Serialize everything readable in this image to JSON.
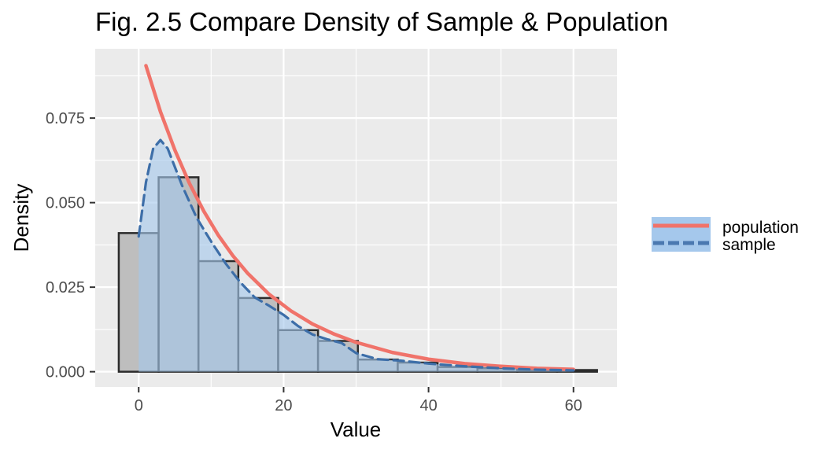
{
  "chart_data": {
    "type": "histogram",
    "title": "Fig. 2.5 Compare Density of Sample & Population",
    "xlabel": "Value",
    "ylabel": "Density",
    "xlim": [
      -6,
      66
    ],
    "ylim": [
      -0.0045,
      0.0955
    ],
    "x_ticks": [
      0,
      20,
      40,
      60
    ],
    "x_tick_labels": [
      "0",
      "20",
      "40",
      "60"
    ],
    "y_ticks": [
      0,
      0.025,
      0.05,
      0.075
    ],
    "y_tick_labels": [
      "0.000",
      "0.025",
      "0.050",
      "0.075"
    ],
    "grid": true,
    "legend_position": "right",
    "histogram": {
      "bin_width": 5.5,
      "bins": [
        {
          "start": -2.75,
          "end": 2.75,
          "density": 0.041
        },
        {
          "start": 2.75,
          "end": 8.25,
          "density": 0.0575
        },
        {
          "start": 8.25,
          "end": 13.75,
          "density": 0.0327
        },
        {
          "start": 13.75,
          "end": 19.25,
          "density": 0.0218
        },
        {
          "start": 19.25,
          "end": 24.75,
          "density": 0.0123
        },
        {
          "start": 24.75,
          "end": 30.25,
          "density": 0.0091
        },
        {
          "start": 30.25,
          "end": 35.75,
          "density": 0.0036
        },
        {
          "start": 35.75,
          "end": 41.25,
          "density": 0.0027
        },
        {
          "start": 41.25,
          "end": 46.75,
          "density": 0.0014
        },
        {
          "start": 46.75,
          "end": 52.25,
          "density": 0.001
        },
        {
          "start": 52.25,
          "end": 57.75,
          "density": 0.0005
        },
        {
          "start": 57.75,
          "end": 63.25,
          "density": 0.0005
        }
      ],
      "fill": "#bebebe",
      "stroke": "#2b2b2b"
    },
    "series": [
      {
        "name": "population",
        "style": "solid",
        "color": "#f0736a",
        "x": [
          1,
          3,
          5,
          7,
          9,
          11,
          13,
          15,
          18,
          21,
          24,
          27,
          30,
          35,
          40,
          45,
          50,
          55,
          60
        ],
        "y": [
          0.0905,
          0.0769,
          0.0655,
          0.0557,
          0.0474,
          0.0403,
          0.0343,
          0.0292,
          0.0229,
          0.018,
          0.0141,
          0.0111,
          0.0087,
          0.0057,
          0.0037,
          0.0024,
          0.0016,
          0.001,
          0.0007
        ]
      },
      {
        "name": "sample",
        "style": "dashed",
        "color": "#3d6ea8",
        "fill": "#a5c8ec",
        "x": [
          0,
          1,
          2,
          3,
          4,
          5,
          6,
          8,
          10,
          12,
          14,
          16,
          18,
          20,
          22,
          24,
          26,
          28,
          30,
          33,
          36,
          40,
          45,
          50,
          55,
          60
        ],
        "y": [
          0.04,
          0.056,
          0.066,
          0.0685,
          0.066,
          0.0605,
          0.055,
          0.0455,
          0.0385,
          0.032,
          0.0265,
          0.022,
          0.0195,
          0.0168,
          0.0135,
          0.011,
          0.0096,
          0.0085,
          0.0055,
          0.0037,
          0.0033,
          0.0024,
          0.0016,
          0.001,
          0.0006,
          0.0004
        ]
      }
    ]
  }
}
